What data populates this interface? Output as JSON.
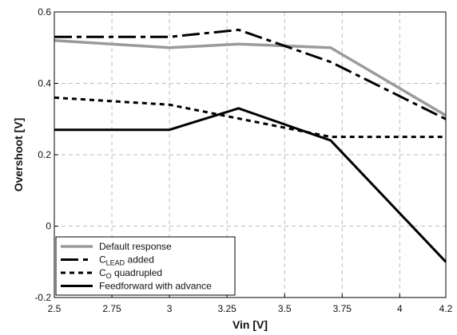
{
  "chart_data": {
    "type": "line",
    "xlabel": "Vin [V]",
    "ylabel": "Overshoot [V]",
    "xlim": [
      2.5,
      4.2
    ],
    "ylim": [
      -0.2,
      0.6
    ],
    "xticks": [
      2.5,
      2.75,
      3,
      3.25,
      3.5,
      3.75,
      4,
      4.2
    ],
    "xtick_labels": [
      "2.5",
      "2.75",
      "3",
      "3.25",
      "3.5",
      "3.75",
      "4",
      "4.2"
    ],
    "yticks": [
      -0.2,
      0,
      0.2,
      0.4,
      0.6
    ],
    "ytick_labels": [
      "-0.2",
      "0",
      "0.2",
      "0.4",
      "0.6"
    ],
    "grid": true,
    "legend_position": "bottom-left",
    "series": [
      {
        "name": "Default response",
        "color": "#9a9a9a",
        "style": "solid",
        "x": [
          2.5,
          3.0,
          3.3,
          3.7,
          4.2
        ],
        "y": [
          0.52,
          0.5,
          0.51,
          0.5,
          0.31
        ]
      },
      {
        "name": "CLEAD added",
        "name_main": "C",
        "name_sub": "LEAD",
        "name_rest": " added",
        "color": "#000000",
        "style": "long-dash",
        "x": [
          2.5,
          3.0,
          3.3,
          3.7,
          4.2
        ],
        "y": [
          0.53,
          0.53,
          0.55,
          0.46,
          0.3
        ]
      },
      {
        "name": "CO quadrupled",
        "name_main": "C",
        "name_sub": "O",
        "name_rest": " quadrupled",
        "color": "#000000",
        "style": "short-dash",
        "x": [
          2.5,
          3.0,
          3.7,
          4.2
        ],
        "y": [
          0.36,
          0.34,
          0.25,
          0.25
        ]
      },
      {
        "name": "Feedforward with advance",
        "color": "#000000",
        "style": "solid",
        "x": [
          2.5,
          3.0,
          3.3,
          3.7,
          4.2
        ],
        "y": [
          0.27,
          0.27,
          0.33,
          0.24,
          -0.1
        ]
      }
    ]
  }
}
